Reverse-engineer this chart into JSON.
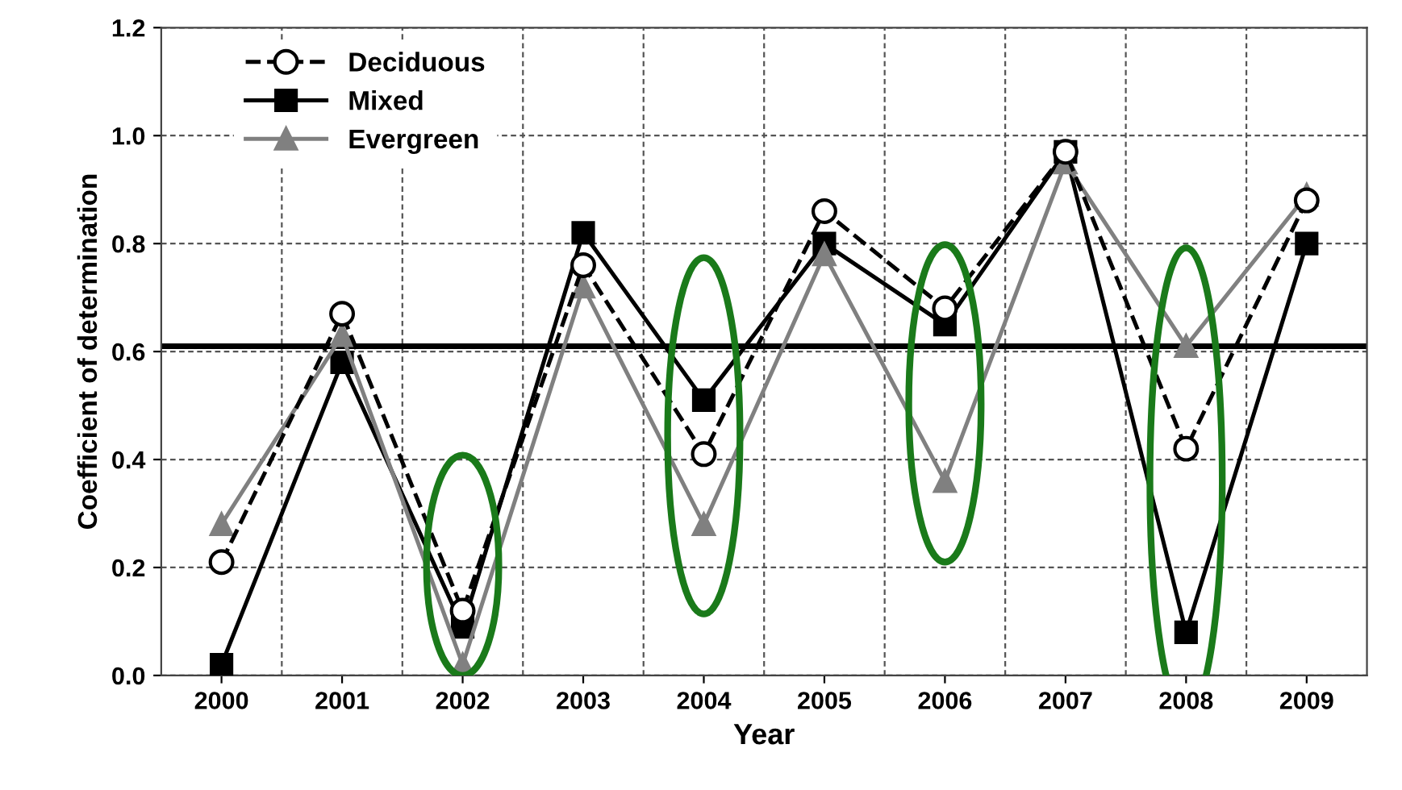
{
  "chart_data": {
    "type": "line",
    "xlabel": "Year",
    "ylabel": "Coefficient of determination",
    "categories": [
      "2000",
      "2001",
      "2002",
      "2003",
      "2004",
      "2005",
      "2006",
      "2007",
      "2008",
      "2009"
    ],
    "series": [
      {
        "name": "Deciduous",
        "color": "#000000",
        "marker": "circle",
        "line_style": "dashed",
        "values": [
          0.21,
          0.67,
          0.12,
          0.76,
          0.41,
          0.86,
          0.68,
          0.97,
          0.42,
          0.88
        ]
      },
      {
        "name": "Mixed",
        "color": "#000000",
        "marker": "square",
        "line_style": "solid",
        "values": [
          0.02,
          0.58,
          0.09,
          0.82,
          0.51,
          0.8,
          0.65,
          0.97,
          0.08,
          0.8
        ]
      },
      {
        "name": "Evergreen",
        "color": "#808080",
        "marker": "triangle",
        "line_style": "solid",
        "values": [
          0.28,
          0.63,
          0.02,
          0.72,
          0.28,
          0.78,
          0.36,
          0.95,
          0.61,
          0.89
        ]
      }
    ],
    "ylim": [
      0,
      1.2
    ],
    "yticks": [
      {
        "value": 0,
        "label": "0.0"
      },
      {
        "value": 0.2,
        "label": "0.2"
      },
      {
        "value": 0.4,
        "label": "0.4"
      },
      {
        "value": 0.6,
        "label": "0.6"
      },
      {
        "value": 0.8,
        "label": "0.8"
      },
      {
        "value": 1.0,
        "label": "1.0"
      },
      {
        "value": 1.2,
        "label": "1.2"
      }
    ],
    "ref_lines": [
      {
        "axis": "y",
        "value": 0.61,
        "color": "#000000",
        "line_style": "solid"
      }
    ],
    "grid": true,
    "legend": "top left"
  }
}
